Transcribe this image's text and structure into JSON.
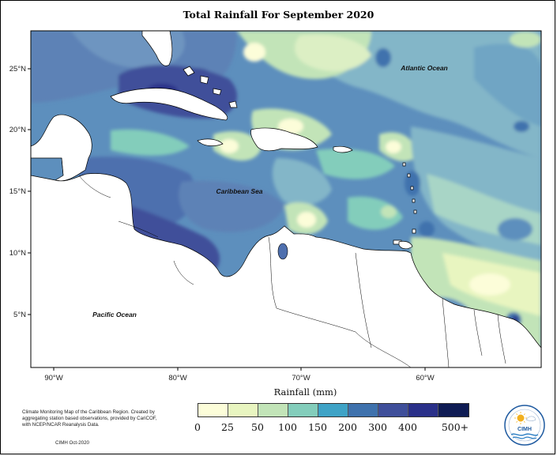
{
  "title": "Total Rainfall For September 2020",
  "map": {
    "lon_labels": [
      "90°W",
      "80°W",
      "70°W",
      "60°W"
    ],
    "lat_labels": [
      "25°N",
      "20°N",
      "15°N",
      "10°N",
      "5°N"
    ],
    "ocean_labels": {
      "atlantic": "Atlantic Ocean",
      "caribbean": "Caribbean Sea",
      "pacific": "Pacific Ocean"
    }
  },
  "legend": {
    "title": "Rainfall (mm)",
    "colors": [
      "#fcfdd9",
      "#e8f5c0",
      "#c2e4b8",
      "#83cdbb",
      "#3fa3c6",
      "#3f72ad",
      "#3f4f9a",
      "#2a3089",
      "#0f1c54"
    ],
    "labels": [
      "0",
      "25",
      "50",
      "100",
      "150",
      "200",
      "300",
      "400",
      "500+"
    ]
  },
  "description": "Climate Monitoring Map of the Caribbean Region. Created by aggregating station based observations, provided by CariCOF, with NCEP/NCAR Reanalysis Data.",
  "credit": "CIMH Oct-2020",
  "logo": {
    "text": "CIMH",
    "colors": {
      "ring": "#1e5aa0",
      "sun": "#f2b01e",
      "water": "#2c7fc4"
    }
  }
}
